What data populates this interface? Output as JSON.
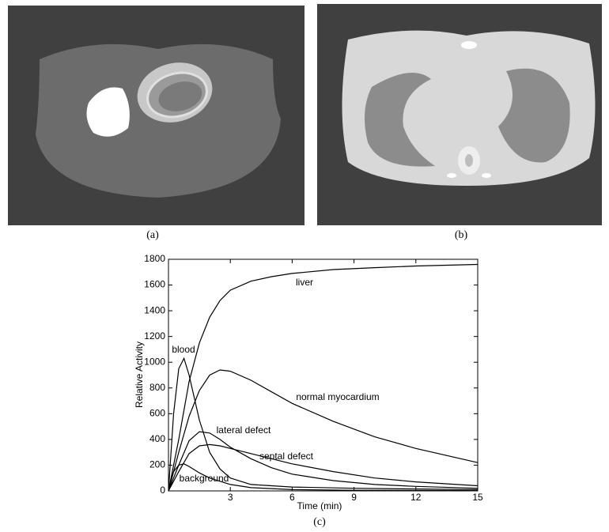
{
  "captions": {
    "a": "(a)",
    "b": "(b)",
    "c": "(c)"
  },
  "chart_data": {
    "type": "line",
    "x_label": "Time (min)",
    "y_label": "Relative Activity",
    "xlim": [
      0,
      15
    ],
    "xticks": [
      3,
      6,
      9,
      12,
      15
    ],
    "ylim": [
      0,
      1800
    ],
    "yticks": [
      0,
      200,
      400,
      600,
      800,
      1000,
      1200,
      1400,
      1600,
      1800
    ],
    "series": [
      {
        "name": "liver",
        "color": "#000000",
        "x": [
          0,
          0.5,
          1,
          1.5,
          2,
          2.5,
          3,
          4,
          5,
          6,
          8,
          10,
          12,
          15
        ],
        "values": [
          0,
          400,
          850,
          1150,
          1350,
          1480,
          1560,
          1630,
          1665,
          1690,
          1720,
          1735,
          1748,
          1760
        ]
      },
      {
        "name": "blood",
        "color": "#000000",
        "x": [
          0,
          0.25,
          0.5,
          0.75,
          1,
          1.5,
          2,
          2.5,
          3,
          4,
          6,
          9,
          15
        ],
        "values": [
          0,
          600,
          950,
          1030,
          900,
          550,
          300,
          170,
          100,
          50,
          30,
          20,
          10
        ]
      },
      {
        "name": "normal myocardium",
        "color": "#000000",
        "x": [
          0,
          0.5,
          1,
          1.5,
          2,
          2.5,
          3,
          4,
          5,
          6,
          8,
          10,
          12,
          15
        ],
        "values": [
          0,
          300,
          580,
          780,
          900,
          940,
          930,
          860,
          770,
          680,
          540,
          420,
          330,
          220
        ]
      },
      {
        "name": "lateral defect",
        "color": "#000000",
        "x": [
          0,
          0.5,
          1,
          1.5,
          2,
          2.5,
          3,
          4,
          5,
          6,
          8,
          10,
          12,
          15
        ],
        "values": [
          0,
          200,
          390,
          460,
          450,
          400,
          340,
          250,
          180,
          130,
          80,
          50,
          35,
          20
        ]
      },
      {
        "name": "septal defect",
        "color": "#000000",
        "x": [
          0,
          0.5,
          1,
          1.5,
          2,
          2.5,
          3,
          4,
          5,
          6,
          8,
          10,
          12,
          15
        ],
        "values": [
          0,
          150,
          290,
          350,
          360,
          350,
          330,
          290,
          250,
          210,
          150,
          100,
          70,
          40
        ]
      },
      {
        "name": "background",
        "color": "#000000",
        "x": [
          0,
          0.25,
          0.5,
          0.75,
          1,
          1.5,
          2,
          3,
          4,
          6,
          9,
          15
        ],
        "values": [
          0,
          150,
          200,
          210,
          190,
          140,
          100,
          50,
          25,
          10,
          5,
          2
        ]
      }
    ]
  }
}
